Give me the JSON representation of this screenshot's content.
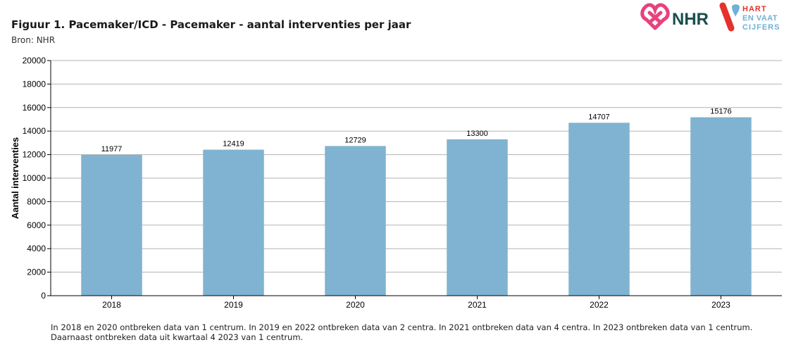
{
  "header": {
    "title": "Figuur 1. Pacemaker/ICD - Pacemaker - aantal interventies per jaar",
    "source": "Bron: NHR"
  },
  "logos": {
    "nhr_text": "NHR",
    "hart_line1": "HART",
    "hart_line2": "EN VAAT",
    "hart_line3": "CIJFERS"
  },
  "colors": {
    "bar": "#7fb3d1",
    "grid": "#b3b3b3",
    "axis": "#000000",
    "nhr_pink": "#e8417d",
    "nhr_green": "#1a4d4a",
    "hart_red": "#e4322b",
    "hart_blue": "#6fb1d6"
  },
  "chart_data": {
    "type": "bar",
    "categories": [
      "2018",
      "2019",
      "2020",
      "2021",
      "2022",
      "2023"
    ],
    "values": [
      11977,
      12419,
      12729,
      13300,
      14707,
      15176
    ],
    "title": "Figuur 1. Pacemaker/ICD - Pacemaker - aantal interventies per jaar",
    "xlabel": "",
    "ylabel": "Aantal interventies",
    "ylim": [
      0,
      20000
    ],
    "yticks": [
      0,
      2000,
      4000,
      6000,
      8000,
      10000,
      12000,
      14000,
      16000,
      18000,
      20000
    ],
    "grid": true,
    "data_labels": true
  },
  "footnote": {
    "line1": "In 2018 en 2020 ontbreken data van 1 centrum. In 2019 en 2022 ontbreken data van 2 centra. In 2021 ontbreken data van 4 centra. In 2023 ontbreken data van 1 centrum.",
    "line2": "Daarnaast ontbreken data uit kwartaal 4 2023 van 1 centrum."
  }
}
